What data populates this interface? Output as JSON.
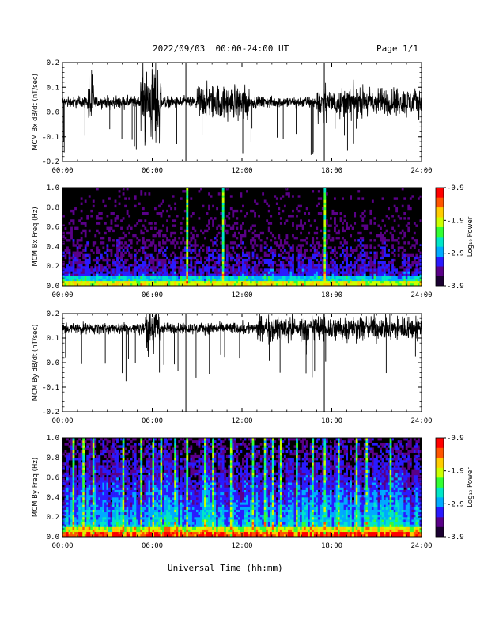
{
  "header": {
    "title": "2022/09/03  00:00-24:00 UT",
    "page": "Page 1/1"
  },
  "xlabel": "Universal Time (hh:mm)",
  "colors": {
    "background": "#000000",
    "trace": "#000000",
    "colormap": [
      "#1a0030",
      "#5a0088",
      "#2a1aff",
      "#00aaff",
      "#00e6c8",
      "#33ff33",
      "#ccff00",
      "#ffcc00",
      "#ff5500",
      "#ff0000"
    ]
  },
  "chart_data": [
    {
      "type": "line",
      "ylabel": "MCM Bx dB/dt (nT/sec)",
      "x_ticks": [
        "00:00",
        "06:00",
        "12:00",
        "18:00",
        "24:00"
      ],
      "x_range": [
        0,
        24
      ],
      "y_range": [
        -0.2,
        0.2
      ],
      "y_ticks": [
        "-0.2",
        "-0.1",
        "0.0",
        "0.1",
        "0.2"
      ],
      "baseline": 0.04,
      "typical_amplitude": 0.06,
      "bursts": [
        {
          "start": 1.7,
          "end": 2.1,
          "amplitude": 0.2
        },
        {
          "start": 5.2,
          "end": 6.6,
          "amplitude": 0.24
        },
        {
          "start": 9.0,
          "end": 12.5,
          "amplitude": 0.11
        },
        {
          "start": 17.0,
          "end": 24.0,
          "amplitude": 0.09
        }
      ],
      "vertical_markers": [
        8.25,
        17.5
      ]
    },
    {
      "type": "heatmap",
      "ylabel": "MCM Bx Freq (Hz)",
      "x_ticks": [
        "00:00",
        "06:00",
        "12:00",
        "18:00",
        "24:00"
      ],
      "x_range": [
        0,
        24
      ],
      "y_range": [
        0,
        1.0
      ],
      "y_ticks": [
        "0.0",
        "0.2",
        "0.4",
        "0.6",
        "0.8",
        "1.0"
      ],
      "colorbar": {
        "label": "Log₁₀ Power",
        "ticks": [
          "-0.9",
          "-1.9",
          "-2.9",
          "-3.9"
        ],
        "range": [
          -3.9,
          -0.9
        ]
      },
      "bright_columns": [
        8.25,
        10.7,
        17.5
      ],
      "activity": "low"
    },
    {
      "type": "line",
      "ylabel": "MCM By dB/dt (nT/sec)",
      "x_ticks": [
        "00:00",
        "06:00",
        "12:00",
        "18:00",
        "24:00"
      ],
      "x_range": [
        0,
        24
      ],
      "y_range": [
        -0.2,
        0.2
      ],
      "y_ticks": [
        "-0.2",
        "-0.1",
        "0.0",
        "0.1",
        "0.2"
      ],
      "baseline": 0.14,
      "typical_amplitude": 0.06,
      "bursts": [
        {
          "start": 5.5,
          "end": 6.5,
          "amplitude": 0.16
        },
        {
          "start": 13.0,
          "end": 24.0,
          "amplitude": 0.08
        }
      ],
      "vertical_markers": [
        8.25,
        17.5
      ]
    },
    {
      "type": "heatmap",
      "ylabel": "MCM By Freq (Hz)",
      "x_ticks": [
        "00:00",
        "06:00",
        "12:00",
        "18:00",
        "24:00"
      ],
      "x_range": [
        0,
        24
      ],
      "y_range": [
        0,
        1.0
      ],
      "y_ticks": [
        "0.0",
        "0.2",
        "0.4",
        "0.6",
        "0.8",
        "1.0"
      ],
      "colorbar": {
        "label": "Log₁₀ Power",
        "ticks": [
          "-0.9",
          "-1.9",
          "-2.9",
          "-3.9"
        ],
        "range": [
          -3.9,
          -0.9
        ]
      },
      "bright_columns": [
        0.6,
        1.3,
        2.0,
        4.0,
        5.2,
        6.0,
        6.6,
        7.4,
        8.25,
        9.4,
        10.0,
        11.2,
        12.7,
        13.4,
        14.0,
        14.5,
        15.6,
        16.6,
        17.5,
        18.4,
        19.6,
        20.3,
        21.8
      ],
      "activity": "high"
    }
  ]
}
